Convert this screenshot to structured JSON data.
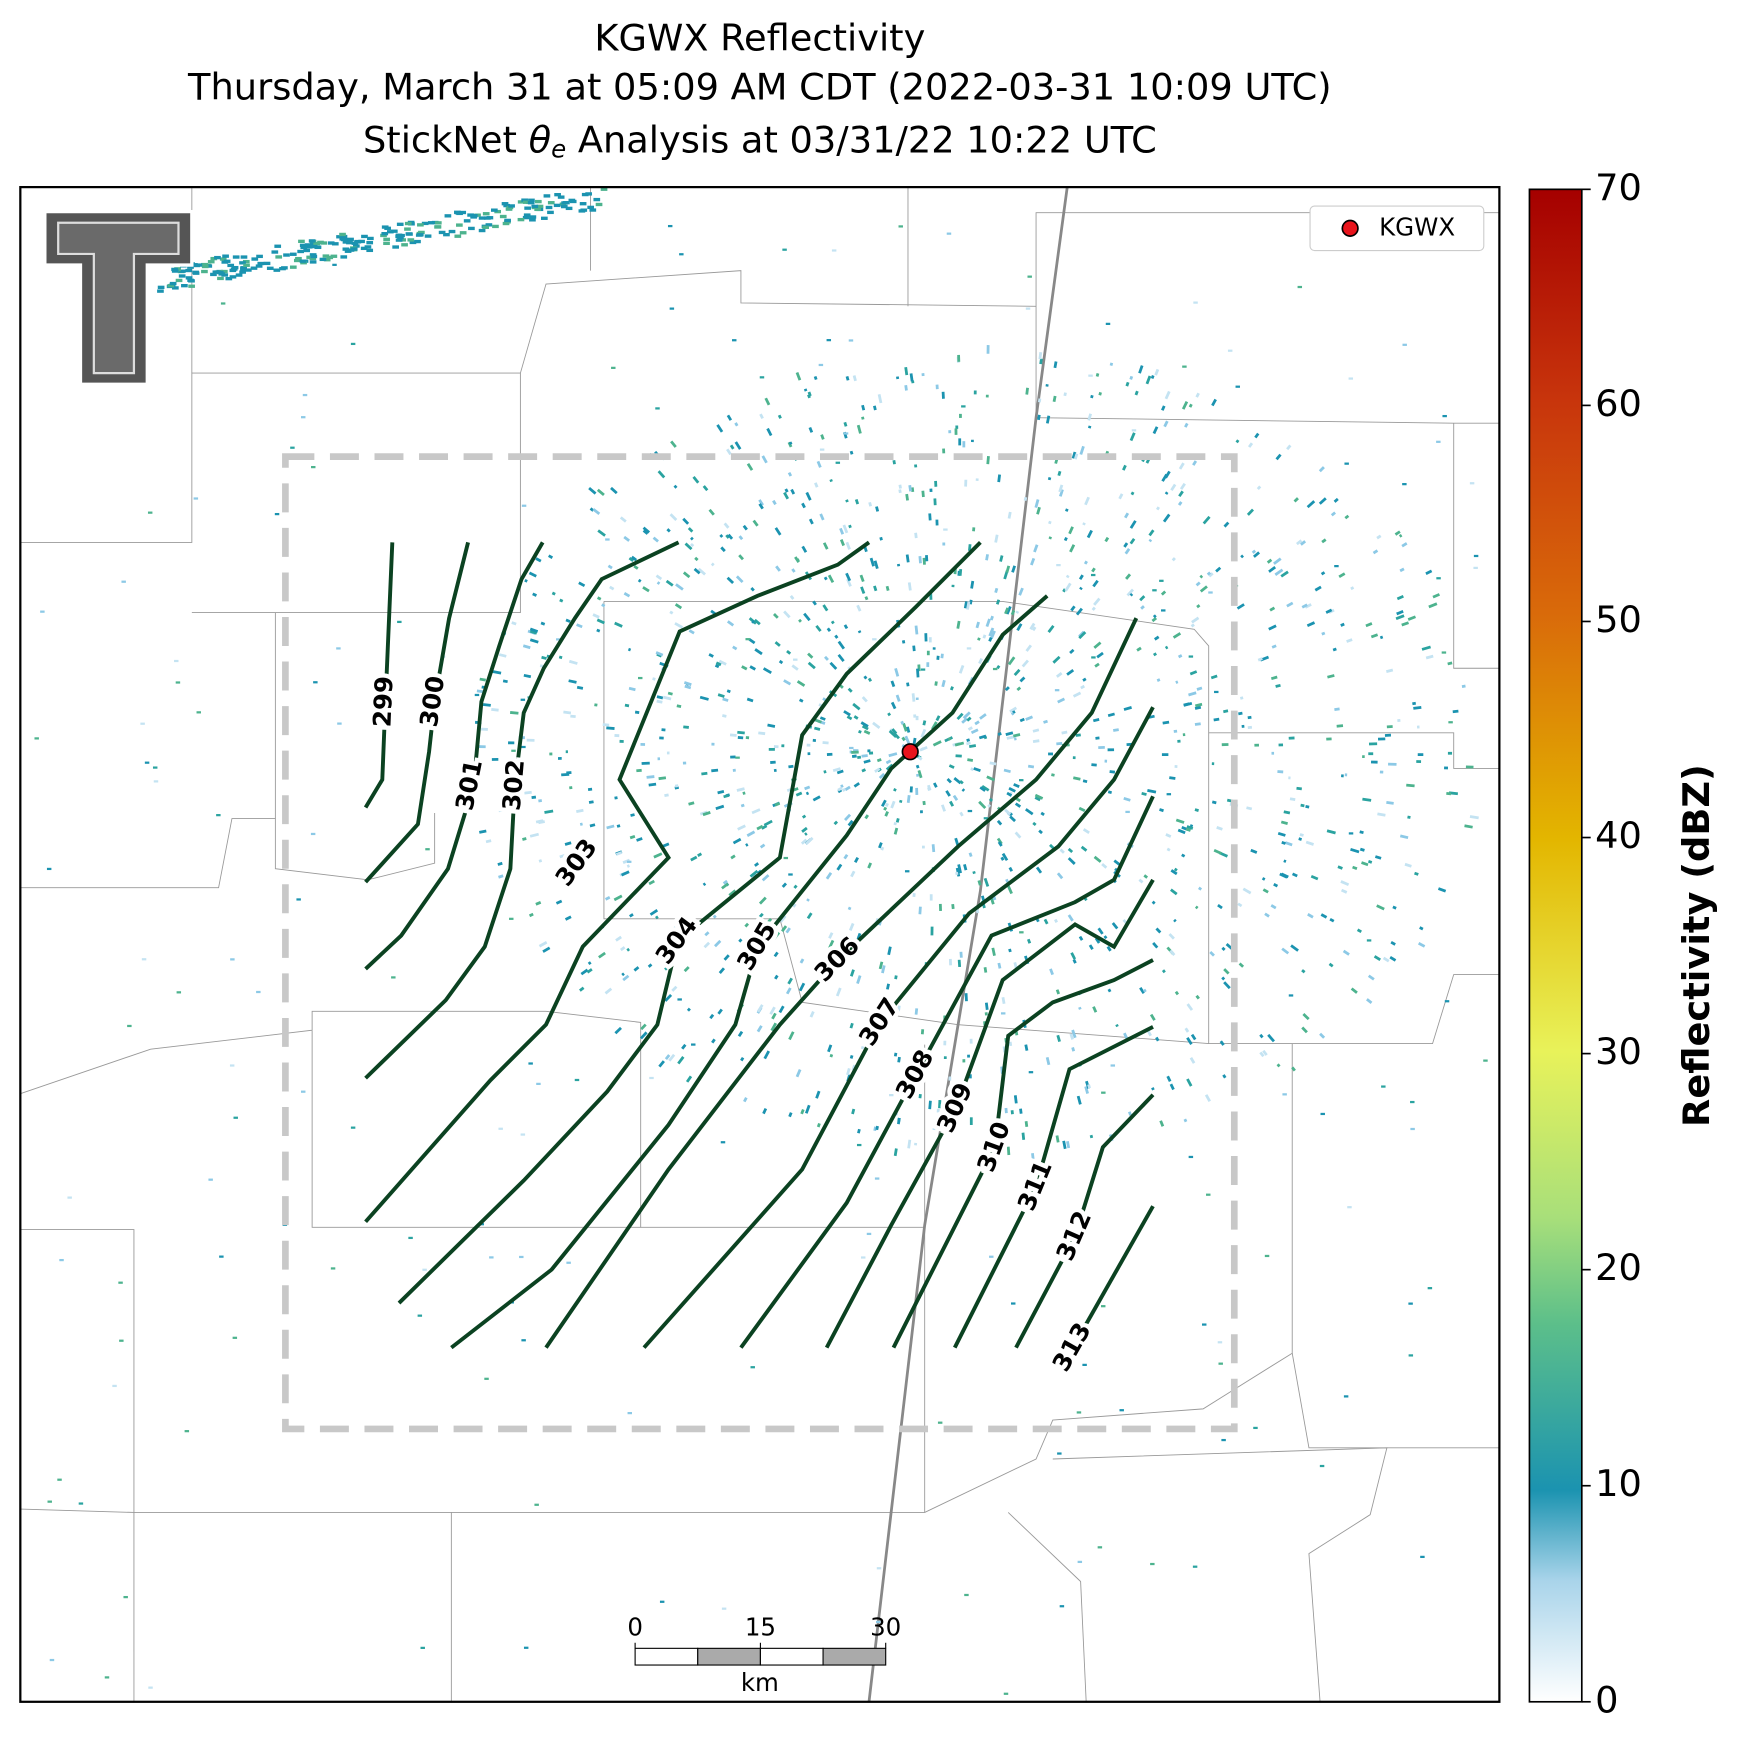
{
  "title": {
    "line1": "KGWX Reflectivity",
    "line2": "Thursday, March 31 at 05:09 AM CDT (2022-03-31 10:09 UTC)",
    "line3": {
      "prefix": "StickNet ",
      "symbol": "θ",
      "subscript": "e",
      "suffix": " Analysis at 03/31/22 10:22 UTC"
    }
  },
  "contours": {
    "levels": [
      299,
      300,
      301,
      302,
      303,
      304,
      305,
      306,
      307,
      308,
      309,
      310,
      311,
      312,
      313
    ],
    "color": "#0b4221"
  },
  "legend": {
    "label": "KGWX",
    "color": "#e8141c"
  },
  "colorbar": {
    "label": "Reflectivity (dBZ)",
    "lim": [
      0,
      70
    ],
    "ticks": [
      0,
      10,
      20,
      30,
      40,
      50,
      60,
      70
    ]
  },
  "scale_bar": {
    "lim": [
      0,
      30
    ],
    "ticks": [
      0,
      15,
      30
    ],
    "unit": "km"
  }
}
